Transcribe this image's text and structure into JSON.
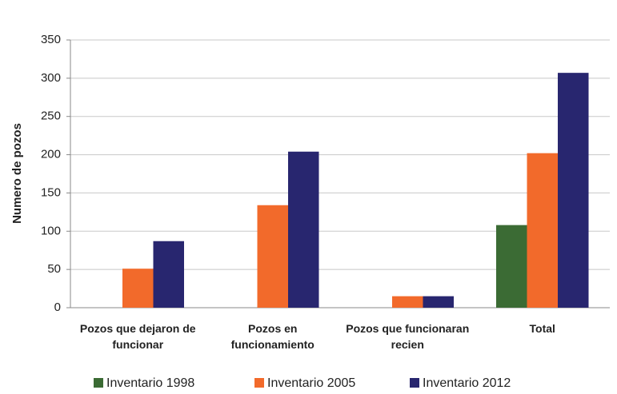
{
  "chart_data": {
    "type": "bar",
    "y_label": "Numero de pozos",
    "categories": [
      "Pozos que dejaron de funcionar",
      "Pozos en funcionamiento",
      "Pozos que funcionaran recien",
      "Total"
    ],
    "series": [
      {
        "name": "Inventario 1998",
        "color": "#3b6b34",
        "values": [
          0,
          0,
          0,
          108
        ]
      },
      {
        "name": "Inventario 2005",
        "color": "#f26a2b",
        "values": [
          51,
          134,
          15,
          202
        ]
      },
      {
        "name": "Inventario 2012",
        "color": "#28266f",
        "values": [
          87,
          204,
          15,
          307
        ]
      }
    ],
    "ylim": [
      0,
      350
    ],
    "yticks": [
      0,
      50,
      100,
      150,
      200,
      250,
      300,
      350
    ],
    "grid": true,
    "legend": "bottom"
  }
}
